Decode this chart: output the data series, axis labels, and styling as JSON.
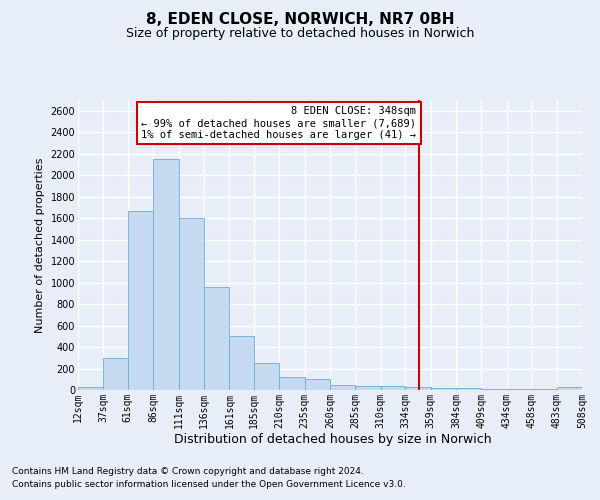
{
  "title": "8, EDEN CLOSE, NORWICH, NR7 0BH",
  "subtitle": "Size of property relative to detached houses in Norwich",
  "xlabel": "Distribution of detached houses by size in Norwich",
  "ylabel": "Number of detached properties",
  "footer_line1": "Contains HM Land Registry data © Crown copyright and database right 2024.",
  "footer_line2": "Contains public sector information licensed under the Open Government Licence v3.0.",
  "annotation_title": "8 EDEN CLOSE: 348sqm",
  "annotation_line2": "← 99% of detached houses are smaller (7,689)",
  "annotation_line3": "1% of semi-detached houses are larger (41) →",
  "property_size": 348,
  "bin_edges": [
    12,
    37,
    61,
    86,
    111,
    136,
    161,
    185,
    210,
    235,
    260,
    285,
    310,
    334,
    359,
    384,
    409,
    434,
    458,
    483,
    508
  ],
  "bar_heights": [
    25,
    300,
    1670,
    2150,
    1600,
    960,
    505,
    250,
    120,
    100,
    50,
    40,
    35,
    25,
    15,
    20,
    10,
    5,
    5,
    25
  ],
  "bar_color": "#c5d9f0",
  "bar_edge_color": "#6aaed6",
  "vline_color": "#cc0000",
  "vline_x": 348,
  "ylim": [
    0,
    2700
  ],
  "yticks": [
    0,
    200,
    400,
    600,
    800,
    1000,
    1200,
    1400,
    1600,
    1800,
    2000,
    2200,
    2400,
    2600
  ],
  "background_color": "#e8eef8",
  "grid_color": "#ffffff",
  "annotation_box_facecolor": "#ffffff",
  "annotation_box_edgecolor": "#cc0000",
  "title_fontsize": 11,
  "subtitle_fontsize": 9,
  "ylabel_fontsize": 8,
  "xlabel_fontsize": 9,
  "tick_fontsize": 7,
  "footer_fontsize": 6.5,
  "annotation_fontsize": 7.5
}
